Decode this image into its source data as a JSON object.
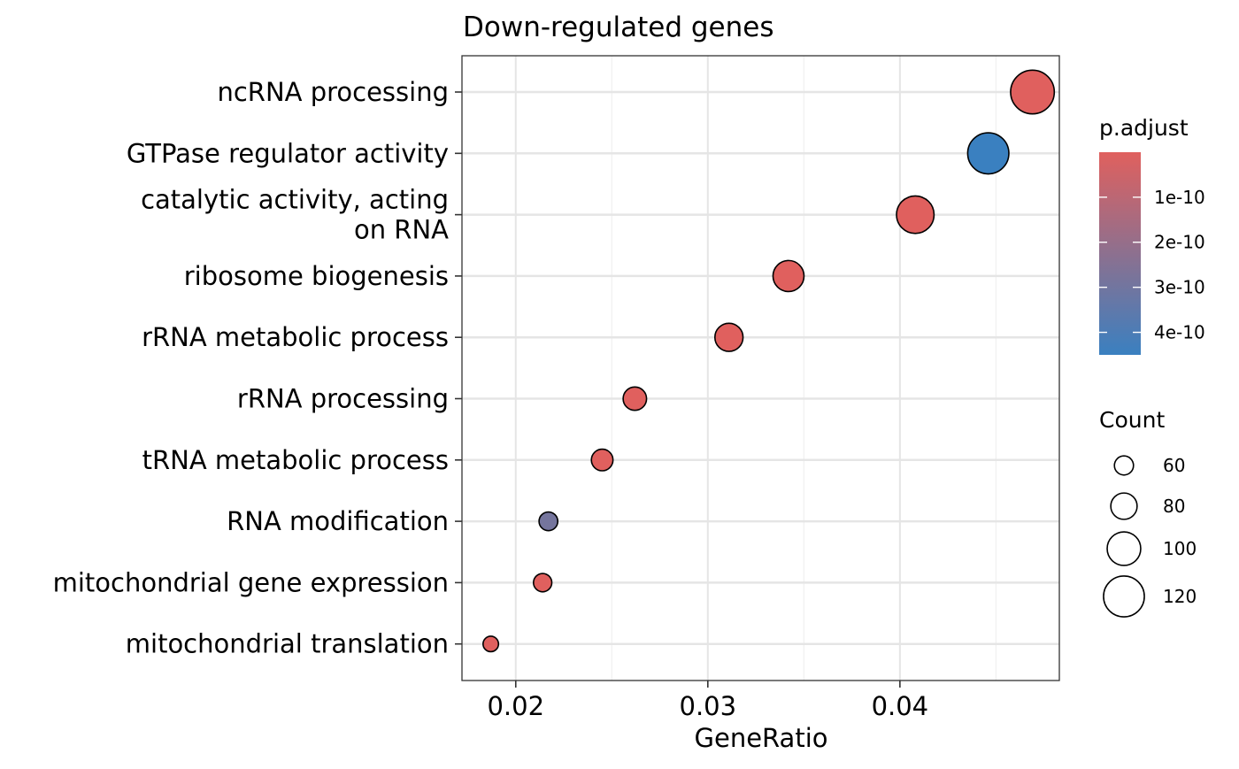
{
  "chart_data": {
    "type": "scatter",
    "title": "Down-regulated genes",
    "xlabel": "GeneRatio",
    "ylabel": "",
    "xlim": [
      0.0172,
      0.0483
    ],
    "x_ticks": [
      0.02,
      0.03,
      0.04
    ],
    "x_tick_labels": [
      "0.02",
      "0.03",
      "0.04"
    ],
    "grid": true,
    "categories": [
      [
        "ncRNA processing"
      ],
      [
        "GTPase regulator activity"
      ],
      [
        "catalytic activity, acting",
        "on RNA"
      ],
      [
        "ribosome biogenesis"
      ],
      [
        "rRNA metabolic process"
      ],
      [
        "rRNA processing"
      ],
      [
        "tRNA metabolic process"
      ],
      [
        "RNA modification"
      ],
      [
        "mitochondrial gene expression"
      ],
      [
        "mitochondrial translation"
      ]
    ],
    "points": [
      {
        "x": 0.0469,
        "count": 128,
        "p_adjust": 1e-13
      },
      {
        "x": 0.0446,
        "count": 121,
        "p_adjust": 4.5e-10
      },
      {
        "x": 0.0408,
        "count": 111,
        "p_adjust": 1e-13
      },
      {
        "x": 0.0342,
        "count": 93,
        "p_adjust": 1e-13
      },
      {
        "x": 0.0311,
        "count": 85,
        "p_adjust": 1e-13
      },
      {
        "x": 0.0262,
        "count": 72,
        "p_adjust": 1e-13
      },
      {
        "x": 0.0245,
        "count": 67,
        "p_adjust": 1e-13
      },
      {
        "x": 0.0217,
        "count": 59,
        "p_adjust": 2.9e-10
      },
      {
        "x": 0.0214,
        "count": 58,
        "p_adjust": 1e-13
      },
      {
        "x": 0.0187,
        "count": 50,
        "p_adjust": 1e-13
      }
    ],
    "color_legend": {
      "title": "p.adjust",
      "ticks": [
        1e-10,
        2e-10,
        3e-10,
        4e-10
      ],
      "tick_labels": [
        "1e-10",
        "2e-10",
        "3e-10",
        "4e-10"
      ],
      "range": [
        1e-13,
        4.5e-10
      ],
      "low_color": "#e0605e",
      "high_color": "#3a80c0"
    },
    "size_legend": {
      "title": "Count",
      "values": [
        60,
        80,
        100,
        120
      ],
      "labels": [
        "60",
        "80",
        "100",
        "120"
      ]
    }
  }
}
